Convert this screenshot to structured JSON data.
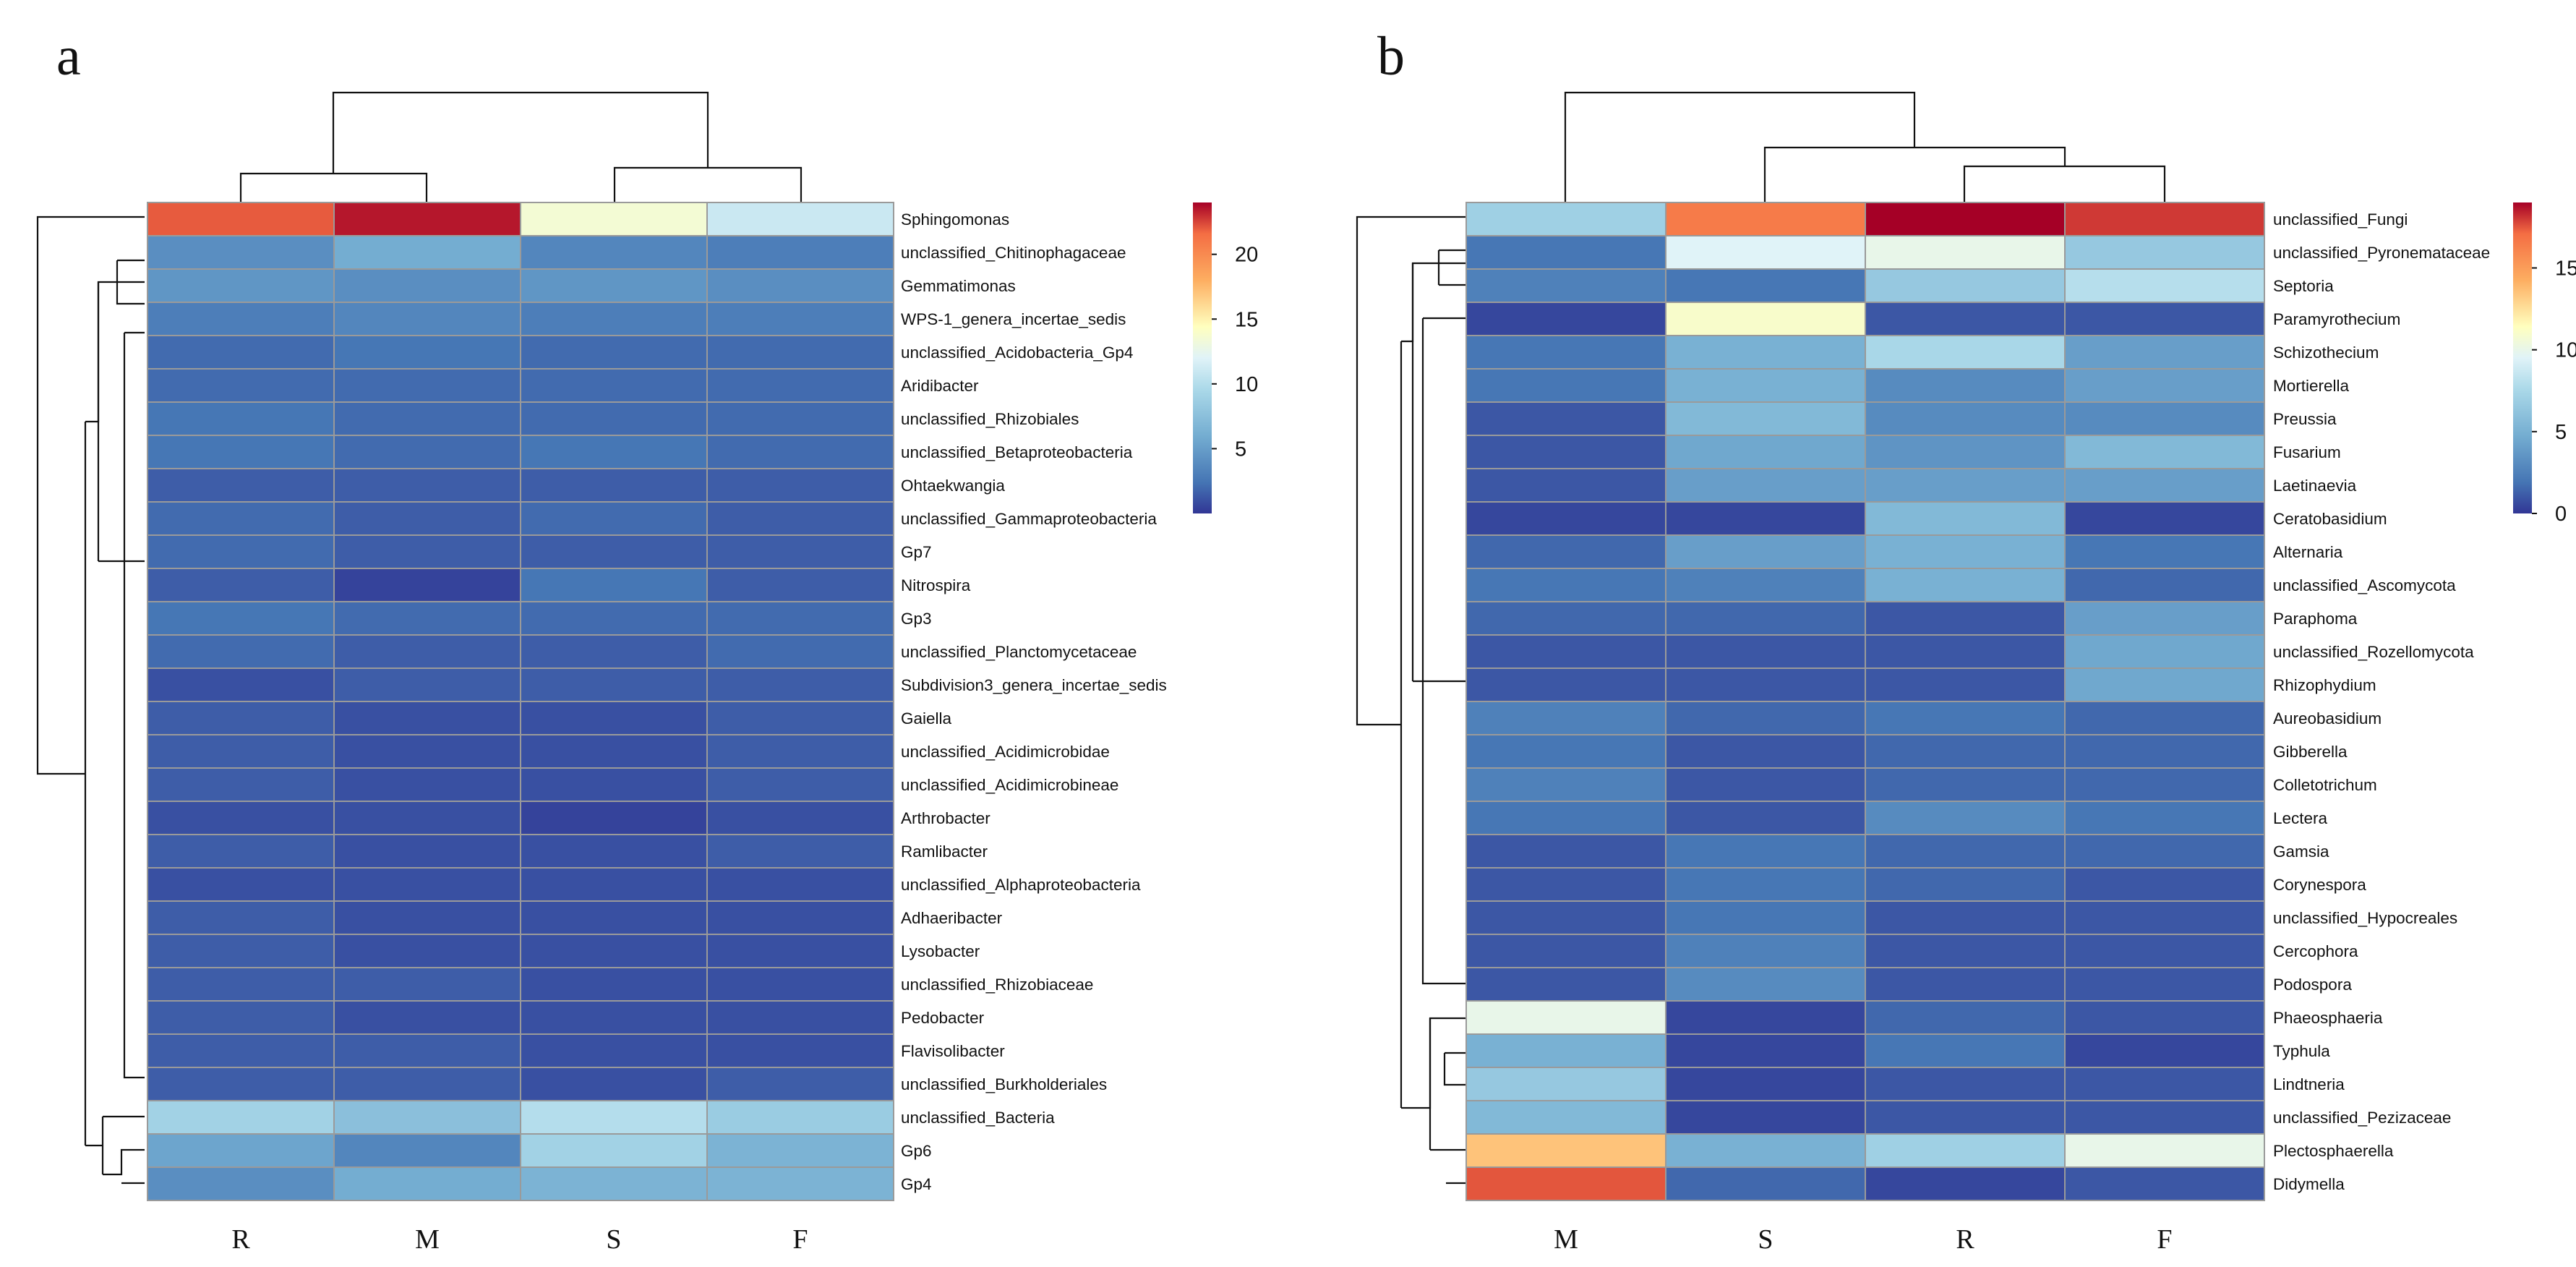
{
  "figure": {
    "type": "heatmap"
  },
  "chart_data": [
    {
      "type": "heatmap",
      "panel_label": "a",
      "columns": [
        "R",
        "M",
        "S",
        "F"
      ],
      "rows": [
        "Sphingomonas",
        "unclassified_Chitinophagaceae",
        "Gemmatimonas",
        "WPS-1_genera_incertae_sedis",
        "unclassified_Acidobacteria_Gp4",
        "Aridibacter",
        "unclassified_Rhizobiales",
        "unclassified_Betaproteobacteria",
        "Ohtaekwangia",
        "unclassified_Gammaproteobacteria",
        "Gp7",
        "Nitrospira",
        "Gp3",
        "unclassified_Planctomycetaceae",
        "Subdivision3_genera_incertae_sedis",
        "Gaiella",
        "unclassified_Acidimicrobidae",
        "unclassified_Acidimicrobineae",
        "Arthrobacter",
        "Ramlibacter",
        "unclassified_Alphaproteobacteria",
        "Adhaeribacter",
        "Lysobacter",
        "unclassified_Rhizobiaceae",
        "Pedobacter",
        "Flavisolibacter",
        "unclassified_Burkholderiales",
        "unclassified_Bacteria",
        "Gp6",
        "Gp4"
      ],
      "values": [
        [
          22.0,
          23.5,
          13.5,
          11.0
        ],
        [
          4.0,
          6.0,
          3.5,
          3.0
        ],
        [
          4.5,
          4.0,
          4.5,
          4.0
        ],
        [
          3.0,
          3.5,
          3.0,
          3.0
        ],
        [
          2.0,
          2.5,
          2.0,
          2.0
        ],
        [
          2.0,
          2.0,
          2.0,
          2.0
        ],
        [
          2.5,
          2.0,
          2.0,
          2.0
        ],
        [
          2.5,
          2.0,
          2.5,
          2.0
        ],
        [
          1.5,
          1.5,
          1.5,
          1.5
        ],
        [
          2.0,
          1.5,
          2.0,
          1.5
        ],
        [
          2.0,
          1.5,
          1.5,
          1.5
        ],
        [
          1.5,
          0.5,
          2.5,
          1.5
        ],
        [
          2.5,
          2.0,
          2.0,
          2.0
        ],
        [
          2.0,
          1.5,
          1.5,
          2.0
        ],
        [
          1.0,
          1.5,
          1.5,
          1.5
        ],
        [
          1.5,
          1.0,
          1.0,
          1.5
        ],
        [
          1.5,
          1.0,
          1.0,
          1.5
        ],
        [
          1.5,
          1.0,
          1.0,
          1.5
        ],
        [
          1.0,
          1.0,
          0.5,
          1.0
        ],
        [
          1.5,
          1.0,
          1.0,
          1.5
        ],
        [
          1.0,
          1.0,
          1.0,
          1.0
        ],
        [
          1.5,
          1.0,
          1.0,
          1.0
        ],
        [
          1.5,
          1.0,
          1.0,
          1.0
        ],
        [
          1.5,
          1.5,
          1.0,
          1.0
        ],
        [
          1.5,
          1.0,
          1.0,
          1.0
        ],
        [
          1.5,
          1.5,
          1.0,
          1.0
        ],
        [
          1.5,
          1.5,
          1.0,
          1.5
        ],
        [
          9.0,
          7.5,
          10.0,
          8.5
        ],
        [
          5.5,
          3.5,
          9.0,
          6.5
        ],
        [
          4.0,
          6.0,
          6.5,
          6.5
        ]
      ],
      "color_range": [
        0,
        24
      ],
      "legend": {
        "ticks": [
          5,
          10,
          15,
          20
        ],
        "position": "right"
      },
      "col_dendrogram_text": "((R,M),(S,F))",
      "row_dendrogram_text": "Sphingomonas vs. all others; bottom cluster: unclassified_Bacteria, Gp6, Gp4"
    },
    {
      "type": "heatmap",
      "panel_label": "b",
      "columns": [
        "M",
        "S",
        "R",
        "F"
      ],
      "rows": [
        "unclassified_Fungi",
        "unclassified_Pyronemataceae",
        "Septoria",
        "Paramyrothecium",
        "Schizothecium",
        "Mortierella",
        "Preussia",
        "Fusarium",
        "Laetinaevia",
        "Ceratobasidium",
        "Alternaria",
        "unclassified_Ascomycota",
        "Paraphoma",
        "unclassified_Rozellomycota",
        "Rhizophydium",
        "Aureobasidium",
        "Gibberella",
        "Colletotrichum",
        "Lectera",
        "Gamsia",
        "Corynespora",
        "unclassified_Hypocreales",
        "Cercophora",
        "Podospora",
        "Phaeosphaeria",
        "Typhula",
        "Lindtneria",
        "unclassified_Pezizaceae",
        "Plectosphaerella",
        "Didymella"
      ],
      "values": [
        [
          7.0,
          16.5,
          19.0,
          18.0
        ],
        [
          2.0,
          9.5,
          10.0,
          6.5
        ],
        [
          2.5,
          2.0,
          6.5,
          8.0
        ],
        [
          0.5,
          11.0,
          1.0,
          1.0
        ],
        [
          2.0,
          5.0,
          7.5,
          4.0
        ],
        [
          2.0,
          5.0,
          3.0,
          4.0
        ],
        [
          1.0,
          5.5,
          3.0,
          3.0
        ],
        [
          1.0,
          4.5,
          3.5,
          5.5
        ],
        [
          1.0,
          4.0,
          4.0,
          4.0
        ],
        [
          0.5,
          0.5,
          5.5,
          0.5
        ],
        [
          1.5,
          4.0,
          5.0,
          2.0
        ],
        [
          2.0,
          2.5,
          5.0,
          1.5
        ],
        [
          1.5,
          1.5,
          1.0,
          4.0
        ],
        [
          1.0,
          1.0,
          1.0,
          4.5
        ],
        [
          1.0,
          1.0,
          1.0,
          4.5
        ],
        [
          2.5,
          1.5,
          2.0,
          1.5
        ],
        [
          2.0,
          1.0,
          1.5,
          1.5
        ],
        [
          2.5,
          1.0,
          1.5,
          1.5
        ],
        [
          2.0,
          1.0,
          3.0,
          2.0
        ],
        [
          1.0,
          2.0,
          1.5,
          1.5
        ],
        [
          1.0,
          2.0,
          1.5,
          1.0
        ],
        [
          1.0,
          2.0,
          1.0,
          1.0
        ],
        [
          1.0,
          2.5,
          1.0,
          1.0
        ],
        [
          1.0,
          3.0,
          1.0,
          1.0
        ],
        [
          10.0,
          0.5,
          1.5,
          1.0
        ],
        [
          5.0,
          0.5,
          2.0,
          0.5
        ],
        [
          6.5,
          0.5,
          1.0,
          1.0
        ],
        [
          5.5,
          0.5,
          1.0,
          1.0
        ],
        [
          13.5,
          5.0,
          7.0,
          10.0
        ],
        [
          17.5,
          1.5,
          0.5,
          1.0
        ]
      ],
      "color_range": [
        0,
        19
      ],
      "legend": {
        "ticks": [
          0,
          5,
          10,
          15
        ],
        "position": "right"
      },
      "col_dendrogram_text": "(M,(S,(R,F)))",
      "row_dendrogram_text": "Top cluster: unclassified_Fungi; bottom cluster: Phaeosphaeria, Typhula, Lindtneria, unclassified_Pezizaceae, Plectosphaerella, Didymella"
    }
  ]
}
